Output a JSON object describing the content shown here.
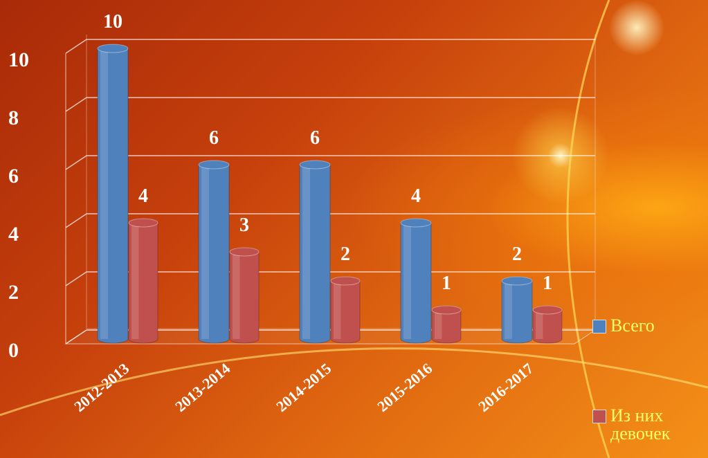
{
  "chart_data": {
    "type": "bar3d",
    "categories": [
      "2012-2013",
      "2013-2014",
      "2014-2015",
      "2015-2016",
      "2016-2017"
    ],
    "series": [
      {
        "name": "Всего",
        "color": "#4f81bd",
        "values": [
          10,
          6,
          6,
          4,
          2
        ]
      },
      {
        "name": "Из них девочек",
        "color": "#c0504d",
        "values": [
          4,
          3,
          2,
          1,
          1
        ]
      }
    ],
    "ylim": [
      0,
      10
    ],
    "yticks": [
      0,
      2,
      4,
      6,
      8,
      10
    ],
    "grid": true,
    "legend": "right"
  }
}
